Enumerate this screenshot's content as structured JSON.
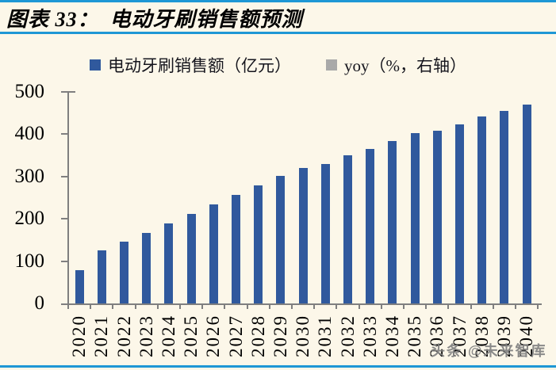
{
  "page": {
    "title": "图表 33：　电动牙刷销售额预测",
    "watermark": "头条 @未来智库"
  },
  "legend": {
    "items": [
      {
        "label": "电动牙刷销售额（亿元）",
        "swatch_color": "#30599D"
      },
      {
        "label": "yoy（%，右轴）",
        "swatch_color": "#A9A9A9"
      }
    ]
  },
  "colors": {
    "background": "#FCF7E9",
    "rule_blue": "#1E97D5",
    "bar_blue": "#30599D",
    "legend_gray": "#A9A9A9",
    "axis_gray": "#7F7F7F",
    "watermark_gray": "#808080",
    "text": "#000000"
  },
  "chart_data": {
    "type": "bar",
    "title": "电动牙刷销售额预测",
    "categories": [
      "2020",
      "2021",
      "2022",
      "2023",
      "2024",
      "2025",
      "2026",
      "2027",
      "2028",
      "2029",
      "2030",
      "2031",
      "2032",
      "2033",
      "2034",
      "2035",
      "2036",
      "2037",
      "2038",
      "2039",
      "2040"
    ],
    "series": [
      {
        "name": "电动牙刷销售额（亿元）",
        "axis": "left",
        "values": [
          78,
          125,
          147,
          167,
          189,
          211,
          234,
          257,
          279,
          301,
          321,
          330,
          350,
          365,
          383,
          402,
          409,
          424,
          442,
          455,
          470
        ]
      }
    ],
    "legend_note": "yoy（%，右轴） appears in legend but no visible plotted points",
    "xlabel": "",
    "ylabel": "",
    "ylim": [
      0,
      500
    ],
    "yticks": [
      0,
      100,
      200,
      300,
      400,
      500
    ],
    "grid": false,
    "legend_position": "top",
    "x_tick_label_rotation": 90
  }
}
